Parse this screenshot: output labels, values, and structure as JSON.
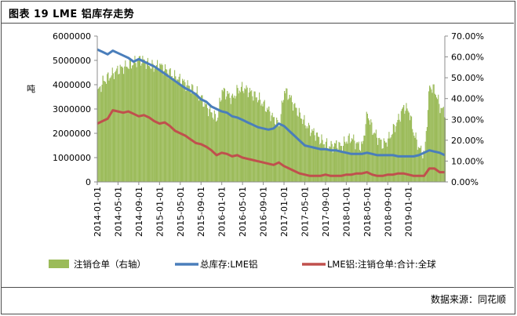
{
  "title": "图表 19 LME 铝库存走势",
  "source": "数据来源：同花顺",
  "chart_data": {
    "type": "bar+line",
    "ylabel_left": "吨",
    "y_left_ticks": [
      "6000000",
      "5000000",
      "4000000",
      "3000000",
      "2000000",
      "1000000",
      "0"
    ],
    "y_left_range": [
      0,
      6000000
    ],
    "y_right_ticks": [
      "70.00%",
      "60.00%",
      "50.00%",
      "40.00%",
      "30.00%",
      "20.00%",
      "10.00%",
      "0.00%"
    ],
    "y_right_range": [
      0,
      0.7
    ],
    "x_ticks": [
      "2014-01-01",
      "2014-05-01",
      "2014-09-01",
      "2015-01-01",
      "2015-05-01",
      "2015-09-01",
      "2016-01-01",
      "2016-05-01",
      "2016-09-01",
      "2017-01-01",
      "2017-05-01",
      "2017-09-01",
      "2018-01-01",
      "2018-05-01",
      "2018-09-01",
      "2019-01-01"
    ],
    "x_range_months": [
      0,
      67
    ],
    "legend": [
      {
        "label": "注销仓单（右轴）",
        "color": "#9bbb59",
        "kind": "bar"
      },
      {
        "label": "总库存:LME铝",
        "color": "#4a7ebb",
        "kind": "line"
      },
      {
        "label": "LME铝:注销仓单:合计:全球",
        "color": "#c0504d",
        "kind": "line"
      }
    ],
    "series": [
      {
        "name": "注销仓单（右轴）",
        "axis": "right",
        "x": [
          0,
          1,
          2,
          3,
          4,
          5,
          6,
          7,
          8,
          9,
          10,
          11,
          12,
          13,
          14,
          15,
          16,
          17,
          18,
          19,
          20,
          21,
          22,
          23,
          24,
          25,
          26,
          27,
          28,
          29,
          30,
          31,
          32,
          33,
          34,
          35,
          36,
          37,
          38,
          39,
          40,
          41,
          42,
          43,
          44,
          45,
          46,
          47,
          48,
          49,
          50,
          51,
          52,
          53,
          54,
          55,
          56,
          57,
          58,
          59,
          60,
          61,
          62,
          63,
          64,
          65,
          66,
          67
        ],
        "values": [
          0.43,
          0.48,
          0.5,
          0.52,
          0.54,
          0.55,
          0.56,
          0.57,
          0.59,
          0.58,
          0.56,
          0.55,
          0.56,
          0.54,
          0.52,
          0.5,
          0.49,
          0.47,
          0.45,
          0.43,
          0.4,
          0.36,
          0.33,
          0.3,
          0.44,
          0.42,
          0.4,
          0.44,
          0.45,
          0.44,
          0.42,
          0.4,
          0.37,
          0.34,
          0.3,
          0.27,
          0.44,
          0.41,
          0.36,
          0.32,
          0.28,
          0.25,
          0.23,
          0.2,
          0.18,
          0.17,
          0.18,
          0.17,
          0.2,
          0.21,
          0.18,
          0.17,
          0.33,
          0.25,
          0.21,
          0.18,
          0.2,
          0.25,
          0.3,
          0.36,
          0.34,
          0.23,
          0.16,
          0.13,
          0.46,
          0.44,
          0.36,
          0.33
        ]
      },
      {
        "name": "总库存:LME铝",
        "axis": "left",
        "x": [
          0,
          1,
          2,
          3,
          4,
          5,
          6,
          7,
          8,
          9,
          10,
          11,
          12,
          13,
          14,
          15,
          16,
          17,
          18,
          19,
          20,
          21,
          22,
          23,
          24,
          25,
          26,
          27,
          28,
          29,
          30,
          31,
          32,
          33,
          34,
          35,
          36,
          37,
          38,
          39,
          40,
          41,
          42,
          43,
          44,
          45,
          46,
          47,
          48,
          49,
          50,
          51,
          52,
          53,
          54,
          55,
          56,
          57,
          58,
          59,
          60,
          61,
          62,
          63,
          64,
          65,
          66,
          67
        ],
        "values": [
          5450000,
          5350000,
          5250000,
          5400000,
          5300000,
          5200000,
          5100000,
          4950000,
          5050000,
          4950000,
          4850000,
          4750000,
          4600000,
          4450000,
          4300000,
          4150000,
          4000000,
          3850000,
          3750000,
          3600000,
          3400000,
          3300000,
          3100000,
          3000000,
          2900000,
          2850000,
          2700000,
          2650000,
          2550000,
          2450000,
          2350000,
          2250000,
          2200000,
          2150000,
          2200000,
          2400000,
          2300000,
          2100000,
          1900000,
          1700000,
          1500000,
          1450000,
          1400000,
          1350000,
          1350000,
          1300000,
          1300000,
          1250000,
          1200000,
          1150000,
          1150000,
          1150000,
          1200000,
          1150000,
          1100000,
          1100000,
          1100000,
          1100000,
          1050000,
          1050000,
          1050000,
          1050000,
          1100000,
          1200000,
          1300000,
          1250000,
          1200000,
          1100000
        ]
      },
      {
        "name": "LME铝:注销仓单:合计:全球",
        "axis": "left",
        "x": [
          0,
          1,
          2,
          3,
          4,
          5,
          6,
          7,
          8,
          9,
          10,
          11,
          12,
          13,
          14,
          15,
          16,
          17,
          18,
          19,
          20,
          21,
          22,
          23,
          24,
          25,
          26,
          27,
          28,
          29,
          30,
          31,
          32,
          33,
          34,
          35,
          36,
          37,
          38,
          39,
          40,
          41,
          42,
          43,
          44,
          45,
          46,
          47,
          48,
          49,
          50,
          51,
          52,
          53,
          54,
          55,
          56,
          57,
          58,
          59,
          60,
          61,
          62,
          63,
          64,
          65,
          66,
          67
        ],
        "values": [
          2400000,
          2500000,
          2600000,
          2950000,
          2900000,
          2850000,
          2900000,
          2800000,
          2700000,
          2750000,
          2650000,
          2500000,
          2400000,
          2450000,
          2300000,
          2100000,
          2000000,
          1900000,
          1750000,
          1600000,
          1550000,
          1450000,
          1300000,
          1100000,
          1200000,
          1150000,
          1050000,
          1100000,
          1000000,
          950000,
          900000,
          850000,
          800000,
          750000,
          700000,
          800000,
          650000,
          550000,
          450000,
          350000,
          300000,
          250000,
          250000,
          250000,
          300000,
          250000,
          250000,
          250000,
          300000,
          300000,
          350000,
          350000,
          400000,
          300000,
          250000,
          250000,
          300000,
          300000,
          350000,
          350000,
          300000,
          250000,
          250000,
          250000,
          550000,
          550000,
          400000,
          400000
        ]
      }
    ]
  }
}
